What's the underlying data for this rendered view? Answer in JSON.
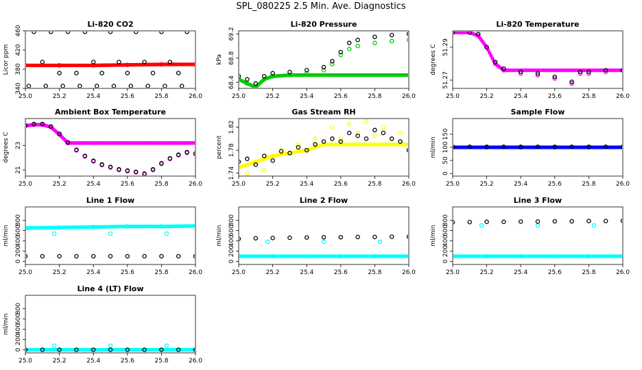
{
  "figure": {
    "title": "SPL_080225  2.5 Min. Ave. Diagnostics"
  },
  "chart_data": [
    {
      "type": "scatter",
      "title": "Li-820 CO2",
      "xlabel": "",
      "ylabel": "Licor ppm",
      "xlim": [
        25.0,
        26.0
      ],
      "ylim": [
        340,
        460
      ],
      "xticks": [
        "25.0",
        "25.2",
        "25.4",
        "25.6",
        "25.8",
        "26.0"
      ],
      "yticks": [
        "340",
        "380",
        "420",
        "460"
      ],
      "series": [
        {
          "color": "#ff0000",
          "x": [
            25.0,
            25.2,
            25.4,
            25.6,
            25.8,
            26.0
          ],
          "y": [
            388,
            388,
            388,
            389,
            390,
            390
          ]
        },
        {
          "color": "#000000",
          "x": [
            25.05,
            25.1,
            25.15,
            25.2,
            25.25,
            25.3,
            25.35,
            25.4,
            25.45,
            25.5,
            25.55,
            25.6,
            25.65,
            25.7,
            25.75,
            25.8,
            25.85,
            25.9,
            25.95,
            25.02,
            25.12,
            25.22,
            25.32,
            25.42,
            25.52,
            25.62,
            25.72,
            25.82,
            25.92
          ],
          "y": [
            458,
            395,
            458,
            372,
            458,
            372,
            458,
            395,
            372,
            458,
            395,
            372,
            458,
            395,
            372,
            458,
            395,
            372,
            458,
            345,
            345,
            345,
            345,
            345,
            345,
            345,
            345,
            345,
            345
          ]
        }
      ]
    },
    {
      "type": "scatter",
      "title": "Li-820 Pressure",
      "xlabel": "",
      "ylabel": "kPa",
      "xlim": [
        25.0,
        26.0
      ],
      "ylim": [
        68.3,
        69.25
      ],
      "xticks": [
        "25.0",
        "25.2",
        "25.4",
        "25.6",
        "25.8",
        "26.0"
      ],
      "yticks": [
        "68.4",
        "68.8",
        "69.2"
      ],
      "series": [
        {
          "color": "#00cc00",
          "x": [
            25.0,
            25.05,
            25.1,
            25.15,
            25.2,
            25.3,
            25.4,
            25.5,
            25.55,
            25.6,
            25.65,
            25.7,
            25.8,
            25.9,
            26.0
          ],
          "y": [
            68.45,
            68.38,
            68.32,
            68.45,
            68.5,
            68.52,
            68.55,
            68.6,
            68.7,
            68.85,
            68.95,
            69.0,
            69.05,
            69.08,
            69.1
          ]
        },
        {
          "color": "#000000",
          "x": [
            25.0,
            25.05,
            25.1,
            25.15,
            25.2,
            25.3,
            25.4,
            25.5,
            25.55,
            25.6,
            25.65,
            25.7,
            25.8,
            25.9,
            26.0
          ],
          "y": [
            68.5,
            68.45,
            68.38,
            68.5,
            68.55,
            68.57,
            68.6,
            68.65,
            68.75,
            68.9,
            69.05,
            69.1,
            69.15,
            69.18,
            69.2
          ]
        }
      ]
    },
    {
      "type": "scatter",
      "title": "Li-820 Temperature",
      "xlabel": "",
      "ylabel": "degrees C",
      "xlim": [
        25.0,
        26.0
      ],
      "ylim": [
        51.265,
        51.3
      ],
      "xticks": [
        "25.0",
        "25.2",
        "25.4",
        "25.6",
        "25.8",
        "26.0"
      ],
      "yticks": [
        "51.27",
        "51.29"
      ],
      "series": [
        {
          "color": "#ff00ff",
          "x": [
            25.0,
            25.1,
            25.15,
            25.2,
            25.25,
            25.3,
            25.4,
            25.5,
            25.6,
            25.7,
            25.75,
            25.8,
            25.9,
            26.0
          ],
          "y": [
            51.299,
            51.299,
            51.297,
            51.29,
            51.28,
            51.276,
            51.274,
            51.273,
            51.271,
            51.268,
            51.274,
            51.274,
            51.275,
            51.276
          ]
        },
        {
          "color": "#000000",
          "x": [
            25.0,
            25.1,
            25.15,
            25.2,
            25.25,
            25.3,
            25.4,
            25.5,
            25.6,
            25.7,
            25.75,
            25.8,
            25.9,
            26.0
          ],
          "y": [
            51.299,
            51.299,
            51.298,
            51.29,
            51.281,
            51.277,
            51.275,
            51.274,
            51.272,
            51.269,
            51.275,
            51.275,
            51.276,
            51.276
          ]
        }
      ]
    },
    {
      "type": "scatter",
      "title": "Ambient Box Temperature",
      "xlabel": "",
      "ylabel": "degrees C",
      "xlim": [
        25.0,
        26.0
      ],
      "ylim": [
        20.5,
        25.2
      ],
      "xticks": [
        "25.0",
        "25.2",
        "25.4",
        "25.6",
        "25.8",
        "26.0"
      ],
      "yticks": [
        "21",
        "23"
      ],
      "series": [
        {
          "color": "#ff00ff",
          "x": [
            25.0,
            25.05,
            25.1,
            25.15,
            25.2,
            25.25,
            25.3,
            25.35,
            25.4,
            25.45,
            25.5,
            25.55,
            25.6,
            25.65,
            25.7,
            25.75,
            25.8,
            25.85,
            25.9,
            25.95,
            26.0
          ],
          "y": [
            24.6,
            24.7,
            24.7,
            24.5,
            23.9,
            23.2,
            22.6,
            22.1,
            21.7,
            21.4,
            21.2,
            21.0,
            20.9,
            20.8,
            20.65,
            21.0,
            21.5,
            21.9,
            22.2,
            22.4,
            22.3
          ]
        },
        {
          "color": "#000000",
          "x": [
            25.0,
            25.05,
            25.1,
            25.15,
            25.2,
            25.25,
            25.3,
            25.35,
            25.4,
            25.45,
            25.5,
            25.55,
            25.6,
            25.65,
            25.7,
            25.75,
            25.8,
            25.85,
            25.9,
            25.95,
            26.0
          ],
          "y": [
            24.65,
            24.75,
            24.75,
            24.55,
            23.95,
            23.25,
            22.65,
            22.15,
            21.75,
            21.45,
            21.25,
            21.05,
            20.95,
            20.85,
            20.7,
            21.05,
            21.55,
            21.95,
            22.25,
            22.45,
            22.35
          ]
        }
      ]
    },
    {
      "type": "scatter",
      "title": "Gas Stream RH",
      "xlabel": "",
      "ylabel": "percent",
      "xlim": [
        25.0,
        26.0
      ],
      "ylim": [
        1.735,
        1.835
      ],
      "xticks": [
        "25.0",
        "25.2",
        "25.4",
        "25.6",
        "25.8",
        "26.0"
      ],
      "yticks": [
        "1.74",
        "1.78",
        "1.82"
      ],
      "series": [
        {
          "color": "#ffff00",
          "x": [
            25.0,
            25.1,
            25.2,
            25.3,
            25.4,
            25.5,
            25.6,
            25.7,
            25.8,
            25.9,
            26.0,
            25.05,
            25.15,
            25.25,
            25.35,
            25.45,
            25.55,
            25.65,
            25.75,
            25.85,
            25.95
          ],
          "y": [
            1.75,
            1.76,
            1.77,
            1.775,
            1.78,
            1.79,
            1.8,
            1.81,
            1.805,
            1.8,
            1.78,
            1.74,
            1.745,
            1.78,
            1.79,
            1.8,
            1.82,
            1.825,
            1.83,
            1.82,
            1.81
          ]
        },
        {
          "color": "#000000",
          "x": [
            25.0,
            25.05,
            25.1,
            25.15,
            25.2,
            25.25,
            25.3,
            25.35,
            25.4,
            25.45,
            25.5,
            25.55,
            25.6,
            25.65,
            25.7,
            25.75,
            25.8,
            25.85,
            25.9,
            25.95,
            26.0
          ],
          "y": [
            1.76,
            1.765,
            1.755,
            1.77,
            1.762,
            1.778,
            1.775,
            1.785,
            1.78,
            1.79,
            1.795,
            1.8,
            1.795,
            1.81,
            1.805,
            1.8,
            1.815,
            1.81,
            1.8,
            1.795,
            1.78
          ]
        }
      ]
    },
    {
      "type": "scatter",
      "title": "Sample Flow",
      "xlabel": "",
      "ylabel": "ml/min",
      "xlim": [
        25.0,
        26.0
      ],
      "ylim": [
        -10,
        210
      ],
      "xticks": [
        "25.0",
        "25.2",
        "25.4",
        "25.6",
        "25.8",
        "26.0"
      ],
      "yticks": [
        "0",
        "50",
        "100",
        "150"
      ],
      "series": [
        {
          "color": "#0000ff",
          "x": [
            25.0,
            25.2,
            25.4,
            25.6,
            25.8,
            26.0
          ],
          "y": [
            100,
            100,
            100,
            100,
            100,
            100
          ]
        },
        {
          "color": "#000000",
          "x": [
            25.0,
            25.1,
            25.2,
            25.3,
            25.4,
            25.5,
            25.6,
            25.7,
            25.8,
            25.9,
            26.0
          ],
          "y": [
            102,
            102,
            102,
            102,
            102,
            102,
            102,
            102,
            102,
            102,
            102
          ]
        }
      ]
    },
    {
      "type": "scatter",
      "title": "Line 1 Flow",
      "xlabel": "",
      "ylabel": "ml/min",
      "xlim": [
        25.0,
        26.0
      ],
      "ylim": [
        -60,
        1060
      ],
      "xticks": [
        "25.0",
        "25.2",
        "25.4",
        "25.6",
        "25.8",
        "26.0"
      ],
      "yticks": [
        "0",
        "200",
        "400",
        "600",
        "800"
      ],
      "series": [
        {
          "color": "#00ffff",
          "x": [
            25.0,
            25.2,
            25.4,
            25.6,
            25.8,
            26.0,
            25.17,
            25.5,
            25.83
          ],
          "y": [
            650,
            660,
            670,
            680,
            680,
            690,
            540,
            540,
            540
          ]
        },
        {
          "color": "#000000",
          "x": [
            25.0,
            25.1,
            25.2,
            25.3,
            25.4,
            25.5,
            25.6,
            25.7,
            25.8,
            25.9,
            26.0
          ],
          "y": [
            100,
            100,
            100,
            100,
            100,
            100,
            100,
            100,
            100,
            100,
            100
          ]
        }
      ]
    },
    {
      "type": "scatter",
      "title": "Line 2 Flow",
      "xlabel": "",
      "ylabel": "ml/min",
      "xlim": [
        25.0,
        26.0
      ],
      "ylim": [
        -60,
        1060
      ],
      "xticks": [
        "25.0",
        "25.2",
        "25.4",
        "25.6",
        "25.8",
        "26.0"
      ],
      "yticks": [
        "0",
        "200",
        "400",
        "600",
        "800"
      ],
      "series": [
        {
          "color": "#00ffff",
          "x": [
            25.0,
            25.2,
            25.4,
            25.6,
            25.8,
            26.0,
            25.17,
            25.5,
            25.83
          ],
          "y": [
            100,
            100,
            100,
            100,
            100,
            100,
            380,
            380,
            380
          ]
        },
        {
          "color": "#000000",
          "x": [
            25.0,
            25.1,
            25.2,
            25.3,
            25.4,
            25.5,
            25.6,
            25.7,
            25.8,
            25.9,
            26.0
          ],
          "y": [
            440,
            450,
            455,
            460,
            465,
            470,
            470,
            475,
            475,
            480,
            480
          ]
        }
      ]
    },
    {
      "type": "scatter",
      "title": "Line 3 Flow",
      "xlabel": "",
      "ylabel": "ml/min",
      "xlim": [
        25.0,
        26.0
      ],
      "ylim": [
        -60,
        1060
      ],
      "xticks": [
        "25.0",
        "25.2",
        "25.4",
        "25.6",
        "25.8",
        "26.0"
      ],
      "yticks": [
        "0",
        "200",
        "400",
        "600",
        "800"
      ],
      "series": [
        {
          "color": "#00ffff",
          "x": [
            25.0,
            25.2,
            25.4,
            25.6,
            25.8,
            26.0,
            25.17,
            25.5,
            25.83
          ],
          "y": [
            100,
            100,
            100,
            100,
            100,
            100,
            700,
            700,
            700
          ]
        },
        {
          "color": "#000000",
          "x": [
            25.0,
            25.1,
            25.2,
            25.3,
            25.4,
            25.5,
            25.6,
            25.7,
            25.8,
            25.9,
            26.0
          ],
          "y": [
            760,
            765,
            770,
            770,
            775,
            775,
            780,
            780,
            785,
            785,
            790
          ]
        }
      ]
    },
    {
      "type": "scatter",
      "title": "Line 4 (LT) Flow",
      "xlabel": "",
      "ylabel": "ml/min",
      "xlim": [
        25.0,
        26.0
      ],
      "ylim": [
        -60,
        1060
      ],
      "xticks": [
        "25.0",
        "25.2",
        "25.4",
        "25.6",
        "25.8",
        "26.0"
      ],
      "yticks": [
        "0",
        "200",
        "400",
        "600",
        "800"
      ],
      "series": [
        {
          "color": "#00ffff",
          "x": [
            25.0,
            25.2,
            25.4,
            25.6,
            25.8,
            26.0,
            25.17,
            25.5,
            25.83
          ],
          "y": [
            0,
            0,
            0,
            0,
            0,
            0,
            80,
            80,
            80
          ]
        },
        {
          "color": "#000000",
          "x": [
            25.0,
            25.1,
            25.2,
            25.3,
            25.4,
            25.5,
            25.6,
            25.7,
            25.8,
            25.9,
            26.0
          ],
          "y": [
            0,
            0,
            0,
            0,
            0,
            0,
            0,
            0,
            0,
            0,
            0
          ]
        }
      ]
    }
  ]
}
